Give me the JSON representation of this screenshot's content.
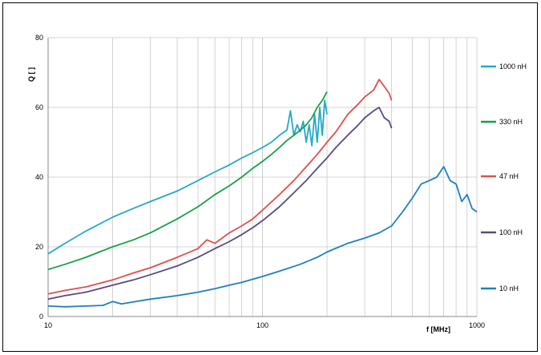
{
  "chart_data": {
    "type": "line",
    "xlabel": "f [MHz]",
    "ylabel": "Q [ ]",
    "xscale": "log",
    "xlim": [
      10,
      1000
    ],
    "ylim": [
      0,
      80
    ],
    "grid": true,
    "legend_position": "right",
    "xticks": [
      10,
      100,
      1000
    ],
    "xtick_labels": [
      "10",
      "100",
      "1000"
    ],
    "yticks": [
      0,
      20,
      40,
      60,
      80
    ],
    "ytick_labels": [
      "0",
      "20",
      "40",
      "60",
      "80"
    ],
    "series": [
      {
        "name": "1000 nH",
        "color": "#22aac8",
        "x": [
          10,
          12,
          15,
          20,
          25,
          30,
          40,
          50,
          60,
          70,
          80,
          90,
          100,
          110,
          120,
          130,
          135,
          140,
          145,
          150,
          155,
          160,
          165,
          170,
          175,
          180,
          185,
          190,
          195,
          200
        ],
        "y": [
          18,
          21,
          24.5,
          28.5,
          31,
          33,
          36,
          39,
          41.5,
          43.5,
          45.5,
          47,
          48.5,
          50,
          52,
          53.5,
          59,
          52,
          55,
          53,
          56,
          50,
          55,
          49,
          58,
          50,
          60,
          52,
          62,
          58
        ]
      },
      {
        "name": "330 nH",
        "color": "#17a04a",
        "x": [
          10,
          12,
          15,
          20,
          25,
          30,
          40,
          50,
          60,
          70,
          80,
          90,
          100,
          110,
          120,
          130,
          140,
          150,
          160,
          170,
          180,
          190,
          200
        ],
        "y": [
          13.5,
          15,
          17,
          20,
          22,
          24,
          28,
          31.5,
          35,
          37.5,
          40,
          42.5,
          44.5,
          46.5,
          48.5,
          50.5,
          52,
          53.5,
          55,
          57,
          60,
          62,
          64.5
        ]
      },
      {
        "name": "47 nH",
        "color": "#e04f4f",
        "x": [
          10,
          12,
          15,
          20,
          25,
          30,
          40,
          50,
          55,
          60,
          70,
          80,
          90,
          100,
          120,
          140,
          160,
          180,
          200,
          220,
          250,
          280,
          300,
          330,
          350,
          370,
          390,
          400
        ],
        "y": [
          6.5,
          7.5,
          8.5,
          10.5,
          12.5,
          14,
          17,
          19.5,
          22,
          21,
          24,
          26,
          28,
          30.5,
          35,
          39,
          43,
          46.5,
          50,
          53,
          58,
          61,
          63,
          65,
          68,
          66,
          64,
          62
        ]
      },
      {
        "name": "100 nH",
        "color": "#5b4a7e",
        "x": [
          10,
          12,
          15,
          20,
          25,
          30,
          40,
          50,
          60,
          70,
          80,
          90,
          100,
          120,
          140,
          160,
          180,
          200,
          220,
          250,
          280,
          300,
          330,
          350,
          370,
          390,
          400
        ],
        "y": [
          5,
          6,
          7,
          9,
          10.5,
          12,
          14.5,
          17,
          19.5,
          21.5,
          23.5,
          25.5,
          27.5,
          31.5,
          35.5,
          39,
          42.5,
          45.5,
          48.5,
          52,
          55,
          57,
          59,
          60,
          57,
          56,
          54
        ]
      },
      {
        "name": "10 nH",
        "color": "#1e7fbf",
        "x": [
          10,
          12,
          15,
          18,
          20,
          22,
          25,
          30,
          40,
          50,
          60,
          70,
          80,
          100,
          120,
          150,
          180,
          200,
          250,
          300,
          350,
          400,
          450,
          500,
          550,
          600,
          650,
          700,
          750,
          800,
          850,
          900,
          950,
          1000
        ],
        "y": [
          3,
          2.8,
          3,
          3.2,
          4.3,
          3.6,
          4.2,
          5,
          6,
          7,
          8,
          9,
          9.8,
          11.5,
          13,
          15,
          17,
          18.5,
          21,
          22.5,
          24,
          26,
          30,
          34,
          38,
          39,
          40,
          43,
          39,
          38,
          33,
          35,
          31,
          30
        ]
      }
    ]
  }
}
